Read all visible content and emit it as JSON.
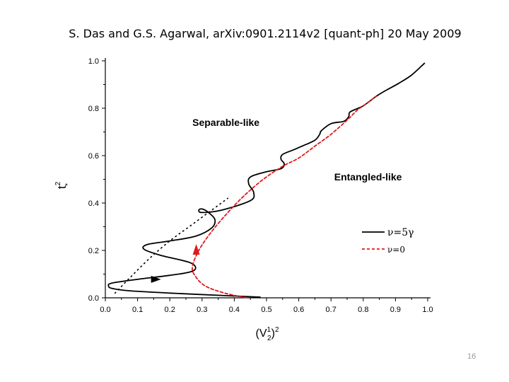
{
  "slide": {
    "title": "S. Das and G.S. Agarwal, arXiv:0901.2114v2 [quant-ph] 20 May 2009",
    "page_number": "16"
  },
  "colors": {
    "series_solid": "#000000",
    "series_dashed": "#e0191c",
    "axis": "#000000"
  },
  "chart_data": {
    "type": "line",
    "xlabel": {
      "base": "(V",
      "sup": "1",
      "sub": "2",
      "close": ")",
      "pow": "2"
    },
    "ylabel": {
      "base": "t",
      "sup": "2",
      "sub": "*"
    },
    "xlim": [
      0.0,
      1.0
    ],
    "ylim": [
      0.0,
      1.0
    ],
    "x_ticks": [
      "0.0",
      "0.1",
      "0.2",
      "0.3",
      "0.4",
      "0.5",
      "0.6",
      "0.7",
      "0.8",
      "0.9",
      "1.0"
    ],
    "y_ticks": [
      "0.0",
      "0.2",
      "0.4",
      "0.6",
      "0.8",
      "1.0"
    ],
    "annotations": [
      {
        "text": "Separable-like",
        "x": 0.27,
        "y": 0.725
      },
      {
        "text": "Entangled-like",
        "x": 0.71,
        "y": 0.495
      }
    ],
    "legend": {
      "position": "right",
      "entries": [
        {
          "label": "ν=5γ",
          "style": "solid"
        },
        {
          "label": "ν=0",
          "style": "dashed"
        }
      ]
    },
    "series": [
      {
        "name": "ν=5γ",
        "style": "solid",
        "x": [
          0.48,
          0.36,
          0.2,
          0.07,
          0.02,
          0.01,
          0.02,
          0.1,
          0.2,
          0.26,
          0.28,
          0.26,
          0.17,
          0.12,
          0.13,
          0.2,
          0.28,
          0.33,
          0.34,
          0.32,
          0.3,
          0.29,
          0.3,
          0.36,
          0.45,
          0.46,
          0.445,
          0.45,
          0.5,
          0.545,
          0.555,
          0.545,
          0.55,
          0.585,
          0.61,
          0.65,
          0.665,
          0.67,
          0.7,
          0.74,
          0.755,
          0.76,
          0.8,
          0.84,
          0.87,
          0.91,
          0.95,
          0.99
        ],
        "y": [
          0.003,
          0.01,
          0.02,
          0.03,
          0.04,
          0.05,
          0.062,
          0.078,
          0.095,
          0.108,
          0.125,
          0.15,
          0.18,
          0.205,
          0.225,
          0.24,
          0.26,
          0.295,
          0.33,
          0.36,
          0.375,
          0.37,
          0.36,
          0.37,
          0.41,
          0.445,
          0.48,
          0.51,
          0.532,
          0.545,
          0.565,
          0.585,
          0.605,
          0.625,
          0.64,
          0.665,
          0.69,
          0.705,
          0.735,
          0.745,
          0.765,
          0.785,
          0.81,
          0.85,
          0.875,
          0.905,
          0.94,
          0.99
        ]
      },
      {
        "name": "ν=0",
        "style": "dashed",
        "x": [
          0.44,
          0.37,
          0.31,
          0.28,
          0.27,
          0.29,
          0.33,
          0.38,
          0.43,
          0.49,
          0.55,
          0.6,
          0.65,
          0.7,
          0.75,
          0.78,
          0.8,
          0.84
        ],
        "y": [
          0.0,
          0.02,
          0.05,
          0.09,
          0.13,
          0.2,
          0.28,
          0.36,
          0.43,
          0.5,
          0.555,
          0.59,
          0.64,
          0.69,
          0.75,
          0.79,
          0.81,
          0.85
        ]
      },
      {
        "name": "",
        "style": "dotted",
        "x": [
          0.03,
          0.08,
          0.14,
          0.2,
          0.26,
          0.32,
          0.38
        ],
        "y": [
          0.02,
          0.09,
          0.17,
          0.24,
          0.3,
          0.36,
          0.42
        ]
      }
    ],
    "arrows": [
      {
        "series": "ν=5γ",
        "x": 0.155,
        "y": 0.078,
        "direction": "right"
      },
      {
        "series": "ν=0",
        "x": 0.282,
        "y": 0.2,
        "direction": "up"
      }
    ]
  }
}
